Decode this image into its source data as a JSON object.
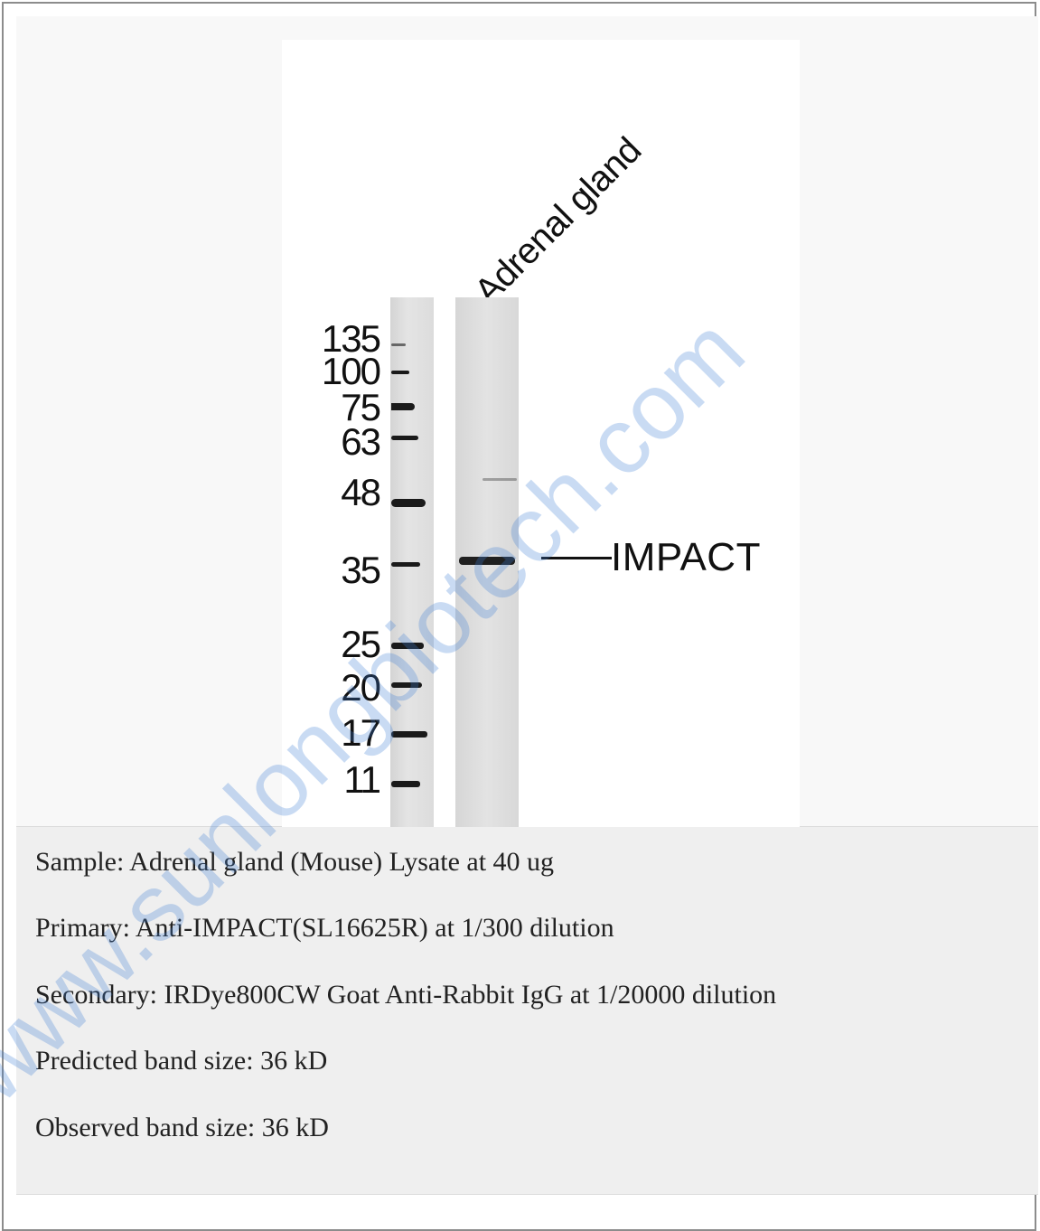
{
  "figure": {
    "lane_label": "Adrenal gland",
    "target_label": "IMPACT",
    "markers": [
      "135",
      "100",
      "75",
      "63",
      "48",
      "35",
      "25",
      "20",
      "17",
      "11"
    ]
  },
  "description": {
    "lines": [
      "Sample: Adrenal gland (Mouse) Lysate at 40 ug",
      "Primary: Anti-IMPACT(SL16625R) at 1/300 dilution",
      "Secondary: IRDye800CW Goat Anti-Rabbit IgG at 1/20000 dilution",
      "Predicted band size: 36 kD",
      "Observed band size: 36 kD"
    ]
  },
  "watermark": {
    "text": "www.sunlongbiotech.com",
    "color": "#3f7fd6"
  }
}
